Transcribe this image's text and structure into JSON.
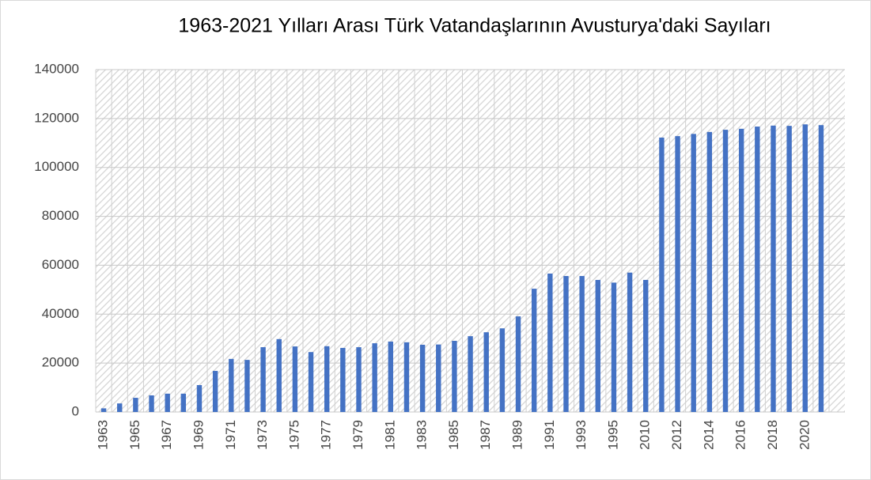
{
  "chart_data": {
    "type": "bar",
    "title": "1963-2021 Yılları Arası Türk Vatandaşlarının  Avusturya'daki Sayıları",
    "categories": [
      "1963",
      null,
      "1965",
      null,
      "1967",
      null,
      "1969",
      null,
      "1971",
      null,
      "1973",
      null,
      "1975",
      null,
      "1977",
      null,
      "1979",
      null,
      "1981",
      null,
      "1983",
      null,
      "1985",
      null,
      "1987",
      null,
      "1989",
      null,
      "1991",
      null,
      "1993",
      null,
      "1995",
      null,
      "2010",
      null,
      "2012",
      null,
      "2014",
      null,
      "2016",
      null,
      "2018",
      null,
      "2020",
      null
    ],
    "values": [
      1500,
      3500,
      5800,
      6800,
      7500,
      7500,
      11000,
      16800,
      21700,
      21300,
      26500,
      29800,
      26800,
      24500,
      26900,
      26200,
      26500,
      28100,
      28800,
      28500,
      27500,
      27600,
      29100,
      31000,
      32600,
      34200,
      39100,
      50400,
      56600,
      55600,
      55600,
      54000,
      52900,
      57000,
      54000,
      112200,
      112800,
      113700,
      114500,
      115400,
      115800,
      116700,
      117100,
      117000,
      117600,
      117300
    ],
    "color": "#4472c4",
    "ylim": [
      0,
      140000
    ],
    "yticks": [
      0,
      20000,
      40000,
      60000,
      80000,
      100000,
      120000,
      140000
    ],
    "grid": true
  }
}
